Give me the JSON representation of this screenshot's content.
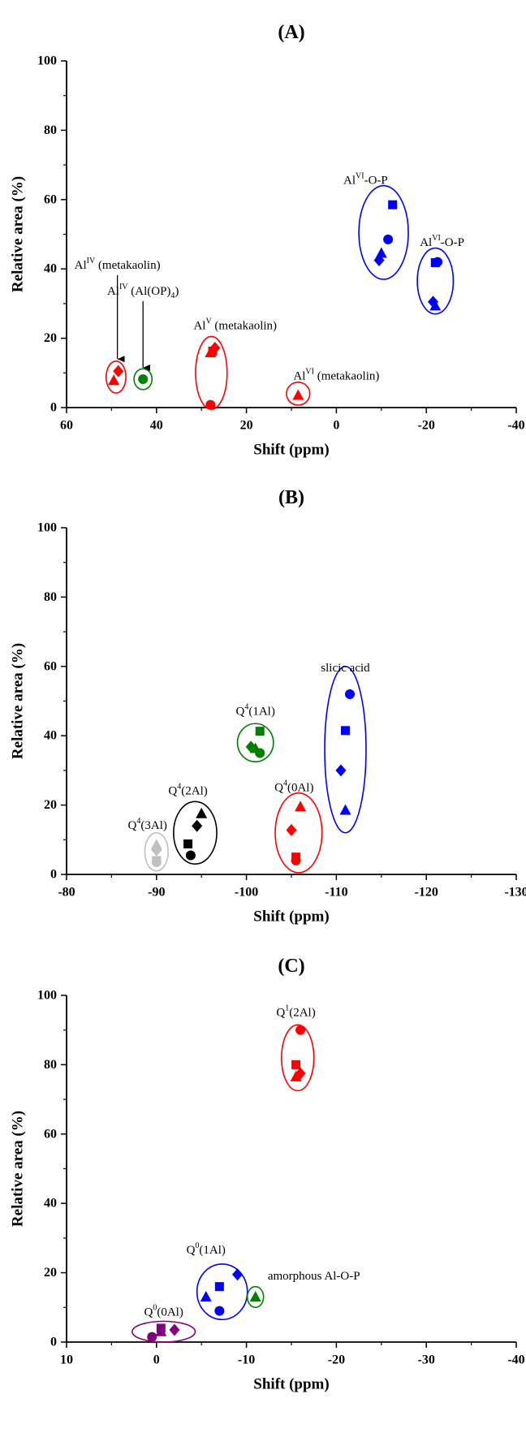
{
  "chart_data": [
    {
      "type": "scatter",
      "title": "(A)",
      "xlabel": "Shift (ppm)",
      "ylabel": "Relative area (%)",
      "xlim": [
        60,
        -40
      ],
      "ylim": [
        0,
        100
      ],
      "xticks": [
        60,
        40,
        20,
        0,
        -20,
        -40
      ],
      "yticks": [
        0,
        20,
        40,
        60,
        80,
        100
      ],
      "grid": false,
      "points": [
        {
          "x": 49.5,
          "y": 7.8,
          "marker": "triangle",
          "color": "#ff0000"
        },
        {
          "x": 48.5,
          "y": 10.5,
          "marker": "diamond",
          "color": "#ff0000"
        },
        {
          "x": 43,
          "y": 8.2,
          "marker": "circle",
          "color": "#008000"
        },
        {
          "x": 28,
          "y": 0.8,
          "marker": "circle",
          "color": "#ff0000"
        },
        {
          "x": 28,
          "y": 15.8,
          "marker": "triangle",
          "color": "#ff0000"
        },
        {
          "x": 27.5,
          "y": 16.3,
          "marker": "square",
          "color": "#ff0000"
        },
        {
          "x": 27,
          "y": 17.2,
          "marker": "diamond",
          "color": "#ff0000"
        },
        {
          "x": 8.5,
          "y": 3.5,
          "marker": "triangle",
          "color": "#ff0000"
        },
        {
          "x": -9.5,
          "y": 42.5,
          "marker": "diamond",
          "color": "#0000ff"
        },
        {
          "x": -10,
          "y": 44.5,
          "marker": "triangle",
          "color": "#0000ff"
        },
        {
          "x": -11.5,
          "y": 48.5,
          "marker": "circle",
          "color": "#0000ff"
        },
        {
          "x": -12.5,
          "y": 58.5,
          "marker": "square",
          "color": "#0000ff"
        },
        {
          "x": -21.5,
          "y": 30.5,
          "marker": "diamond",
          "color": "#0000ff"
        },
        {
          "x": -22,
          "y": 29.3,
          "marker": "triangle",
          "color": "#0000ff"
        },
        {
          "x": -22,
          "y": 41.8,
          "marker": "square",
          "color": "#0000ff"
        },
        {
          "x": -22.5,
          "y": 42,
          "marker": "circle",
          "color": "#0000ff"
        }
      ],
      "ellipses": [
        {
          "cx": 49,
          "cy": 8.8,
          "rx": 2.2,
          "ry": 4.6,
          "color": "#ff0000"
        },
        {
          "cx": 43,
          "cy": 8.2,
          "rx": 2,
          "ry": 3,
          "color": "#008000"
        },
        {
          "cx": 27.8,
          "cy": 10,
          "rx": 3.5,
          "ry": 10.5,
          "color": "#ff0000"
        },
        {
          "cx": 8.5,
          "cy": 4,
          "rx": 2.6,
          "ry": 3.3,
          "color": "#ff0000"
        },
        {
          "cx": -10.5,
          "cy": 50.5,
          "rx": 5.5,
          "ry": 13.5,
          "color": "#0000ff"
        },
        {
          "cx": -22,
          "cy": 36.5,
          "rx": 4,
          "ry": 9.5,
          "color": "#0000ff"
        }
      ],
      "annotations": [
        {
          "base": "Al",
          "sup": "IV",
          "rest": " (metakaolin)",
          "x": 48.7,
          "y": 41,
          "arrow_to": 14
        },
        {
          "base": "Al",
          "sup": "IV",
          "rest": " (Al(OP)",
          "sub": "4",
          "tail": ")",
          "x": 43,
          "y": 33.5,
          "arrow_to": 11.5
        },
        {
          "base": "Al",
          "sup": "V",
          "rest": " (metakaolin)",
          "x": 22.5,
          "y": 23.5
        },
        {
          "base": "Al",
          "sup": "VI",
          "rest": " (metakaolin)",
          "x": 0,
          "y": 9
        },
        {
          "base": "Al",
          "sup": "VI",
          "rest": "-O-P",
          "x": -6.5,
          "y": 65.5
        },
        {
          "base": "Al",
          "sup": "VI",
          "rest": "-O-P",
          "x": -23.5,
          "y": 47.5
        }
      ]
    },
    {
      "type": "scatter",
      "title": "(B)",
      "xlabel": "Shift (ppm)",
      "ylabel": "Relative area (%)",
      "xlim": [
        -80,
        -130
      ],
      "ylim": [
        0,
        100
      ],
      "xticks": [
        -80,
        -90,
        -100,
        -110,
        -120,
        -130
      ],
      "yticks": [
        0,
        20,
        40,
        60,
        80,
        100
      ],
      "grid": false,
      "points": [
        {
          "x": -90,
          "y": 3.5,
          "marker": "circle",
          "color": "#c0c0c0"
        },
        {
          "x": -90,
          "y": 4,
          "marker": "square",
          "color": "#c0c0c0"
        },
        {
          "x": -90,
          "y": 7,
          "marker": "diamond",
          "color": "#c0c0c0"
        },
        {
          "x": -90,
          "y": 8.5,
          "marker": "triangle",
          "color": "#c0c0c0"
        },
        {
          "x": -93.5,
          "y": 8.8,
          "marker": "square",
          "color": "#000000"
        },
        {
          "x": -93.8,
          "y": 5.5,
          "marker": "circle",
          "color": "#000000"
        },
        {
          "x": -94.5,
          "y": 14,
          "marker": "diamond",
          "color": "#000000"
        },
        {
          "x": -95,
          "y": 17.5,
          "marker": "triangle",
          "color": "#000000"
        },
        {
          "x": -100.5,
          "y": 36.8,
          "marker": "diamond",
          "color": "#008000"
        },
        {
          "x": -101,
          "y": 36.3,
          "marker": "triangle",
          "color": "#008000"
        },
        {
          "x": -101.5,
          "y": 41.3,
          "marker": "square",
          "color": "#008000"
        },
        {
          "x": -101.5,
          "y": 35,
          "marker": "circle",
          "color": "#008000"
        },
        {
          "x": -105,
          "y": 12.8,
          "marker": "diamond",
          "color": "#ff0000"
        },
        {
          "x": -105.5,
          "y": 4,
          "marker": "circle",
          "color": "#ff0000"
        },
        {
          "x": -105.5,
          "y": 5,
          "marker": "square",
          "color": "#ff0000"
        },
        {
          "x": -106,
          "y": 19.5,
          "marker": "triangle",
          "color": "#ff0000"
        },
        {
          "x": -110.5,
          "y": 30,
          "marker": "diamond",
          "color": "#0000ff"
        },
        {
          "x": -111,
          "y": 41.5,
          "marker": "square",
          "color": "#0000ff"
        },
        {
          "x": -111,
          "y": 18.5,
          "marker": "triangle",
          "color": "#0000ff"
        },
        {
          "x": -111.5,
          "y": 52,
          "marker": "circle",
          "color": "#0000ff"
        }
      ],
      "ellipses": [
        {
          "cx": -90,
          "cy": 6.5,
          "rx": 1.3,
          "ry": 5.5,
          "color": "#c0c0c0"
        },
        {
          "cx": -94.3,
          "cy": 12,
          "rx": 2.4,
          "ry": 9,
          "color": "#000000"
        },
        {
          "cx": -101,
          "cy": 38,
          "rx": 2,
          "ry": 5.5,
          "color": "#008000"
        },
        {
          "cx": -105.8,
          "cy": 12,
          "rx": 2.6,
          "ry": 11.5,
          "color": "#ff0000"
        },
        {
          "cx": -111,
          "cy": 36,
          "rx": 2.3,
          "ry": 24,
          "color": "#0000ff"
        }
      ],
      "annotations": [
        {
          "base": "Q",
          "sup": "4",
          "rest": "(3Al)",
          "x": -89,
          "y": 14
        },
        {
          "base": "Q",
          "sup": "4",
          "rest": "(2Al)",
          "x": -93.5,
          "y": 24
        },
        {
          "base": "Q",
          "sup": "4",
          "rest": "(1Al)",
          "x": -101,
          "y": 47
        },
        {
          "base": "Q",
          "sup": "4",
          "rest": "(0Al)",
          "x": -105.3,
          "y": 25
        },
        {
          "base": "slicic acid",
          "sup": "",
          "rest": "",
          "x": -111,
          "y": 59.5
        }
      ]
    },
    {
      "type": "scatter",
      "title": "(C)",
      "xlabel": "Shift (ppm)",
      "ylabel": "Relative area (%)",
      "xlim": [
        10,
        -40
      ],
      "ylim": [
        0,
        100
      ],
      "xticks": [
        10,
        0,
        -10,
        -20,
        -30,
        -40
      ],
      "yticks": [
        0,
        20,
        40,
        60,
        80,
        100
      ],
      "grid": false,
      "points": [
        {
          "x": 0.5,
          "y": 1.5,
          "marker": "circle",
          "color": "#800080"
        },
        {
          "x": -0.5,
          "y": 3,
          "marker": "triangle",
          "color": "#800080"
        },
        {
          "x": -0.5,
          "y": 4,
          "marker": "square",
          "color": "#800080"
        },
        {
          "x": -2,
          "y": 3.5,
          "marker": "diamond",
          "color": "#800080"
        },
        {
          "x": -5.5,
          "y": 13,
          "marker": "triangle",
          "color": "#0000ff"
        },
        {
          "x": -7,
          "y": 9,
          "marker": "circle",
          "color": "#0000ff"
        },
        {
          "x": -7,
          "y": 16,
          "marker": "square",
          "color": "#0000ff"
        },
        {
          "x": -9,
          "y": 19.5,
          "marker": "diamond",
          "color": "#0000ff"
        },
        {
          "x": -11,
          "y": 13,
          "marker": "triangle",
          "color": "#008000"
        },
        {
          "x": -15.5,
          "y": 76.5,
          "marker": "triangle",
          "color": "#ff0000"
        },
        {
          "x": -15.5,
          "y": 80,
          "marker": "square",
          "color": "#ff0000"
        },
        {
          "x": -16,
          "y": 77.5,
          "marker": "diamond",
          "color": "#ff0000"
        },
        {
          "x": -16,
          "y": 90,
          "marker": "circle",
          "color": "#ff0000"
        }
      ],
      "ellipses": [
        {
          "cx": -0.8,
          "cy": 3,
          "rx": 3.5,
          "ry": 3,
          "color": "#800080"
        },
        {
          "cx": -7.3,
          "cy": 14.5,
          "rx": 2.8,
          "ry": 8,
          "color": "#0000ff"
        },
        {
          "cx": -11,
          "cy": 13,
          "rx": 0.9,
          "ry": 3,
          "color": "#008000"
        },
        {
          "cx": -15.7,
          "cy": 82,
          "rx": 1.8,
          "ry": 9.5,
          "color": "#ff0000"
        }
      ],
      "annotations": [
        {
          "base": "Q",
          "sup": "0",
          "rest": "(0Al)",
          "x": -0.8,
          "y": 8.5
        },
        {
          "base": "Q",
          "sup": "0",
          "rest": "(1Al)",
          "x": -5.5,
          "y": 26.5
        },
        {
          "base": "amorphous Al-O-P",
          "sup": "",
          "rest": "",
          "x": -17.5,
          "y": 19
        },
        {
          "base": "Q",
          "sup": "1",
          "rest": "(2Al)",
          "x": -15.5,
          "y": 95
        }
      ]
    }
  ]
}
